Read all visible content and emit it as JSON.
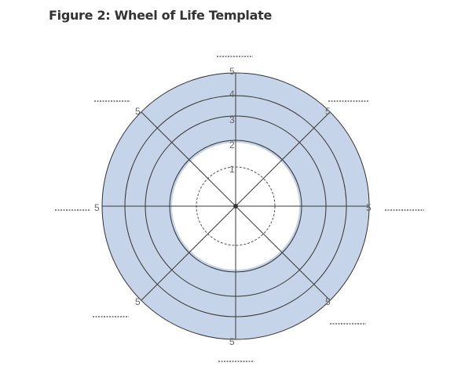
{
  "title": "Figure 2: Wheel of Life Template",
  "colors": {
    "band_fill": "#c5d4e8",
    "inner_fill": "#ffffff",
    "ring_stroke": "#333333",
    "spoke_stroke": "#3a3a3a",
    "label_ticks": "#888888"
  },
  "wheel": {
    "scale": [
      "1",
      "2",
      "3",
      "4",
      "5"
    ],
    "spoke_end_labels": [
      "5",
      "5",
      "5",
      "5",
      "5",
      "5",
      "5",
      "5"
    ]
  }
}
